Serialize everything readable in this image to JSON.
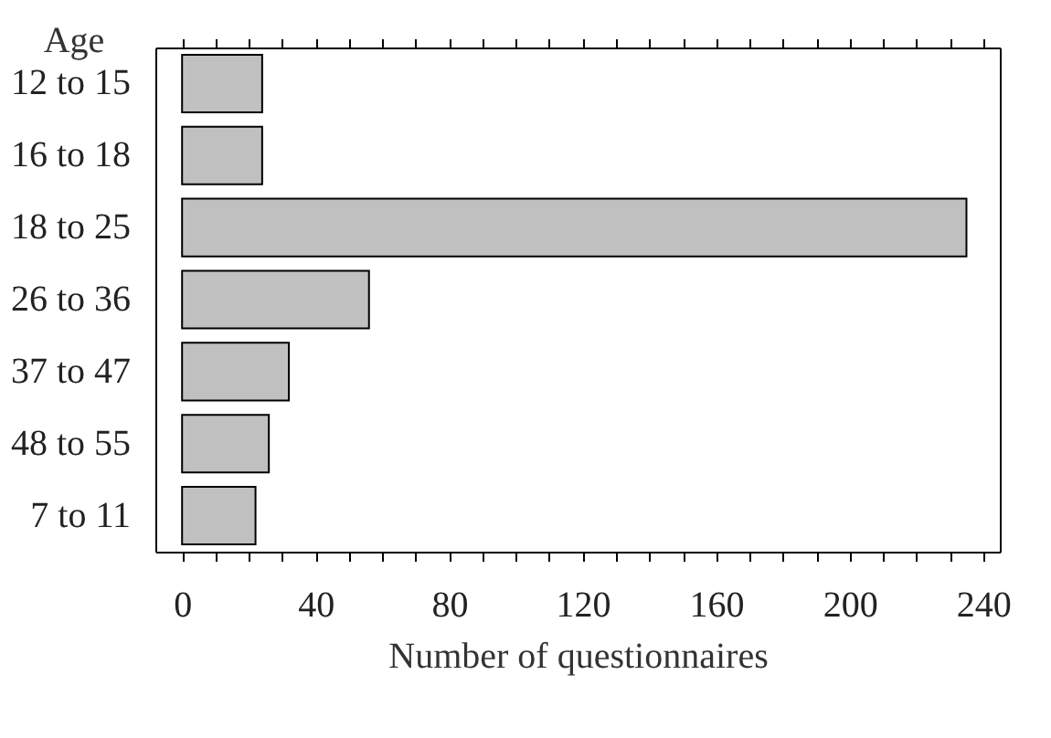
{
  "chart_data": {
    "type": "bar",
    "orientation": "horizontal",
    "ylabel": "Age",
    "xlabel": "Number of questionnaires",
    "categories": [
      "12 to 15",
      "16 to 18",
      "18 to 25",
      "26 to 36",
      "37 to 47",
      "48 to 55",
      "7 to 11"
    ],
    "values": [
      24,
      24,
      235,
      56,
      32,
      26,
      22
    ],
    "color": "#c0c0c0",
    "xlim": [
      -8,
      245
    ],
    "xticks": [
      0,
      {
        "value": 10,
        "label": null
      },
      {
        "value": 20,
        "label": null
      },
      {
        "value": 30,
        "label": null
      },
      40,
      {
        "value": 50,
        "label": null
      },
      {
        "value": 60,
        "label": null
      },
      {
        "value": 70,
        "label": null
      },
      80,
      {
        "value": 90,
        "label": null
      },
      {
        "value": 100,
        "label": null
      },
      {
        "value": 110,
        "label": null
      },
      120,
      {
        "value": 130,
        "label": null
      },
      {
        "value": 140,
        "label": null
      },
      {
        "value": 150,
        "label": null
      },
      160,
      {
        "value": 170,
        "label": null
      },
      {
        "value": 180,
        "label": null
      },
      {
        "value": 190,
        "label": null
      },
      200,
      {
        "value": 210,
        "label": null
      },
      {
        "value": 220,
        "label": null
      },
      {
        "value": 230,
        "label": null
      },
      240
    ],
    "grid": false
  }
}
